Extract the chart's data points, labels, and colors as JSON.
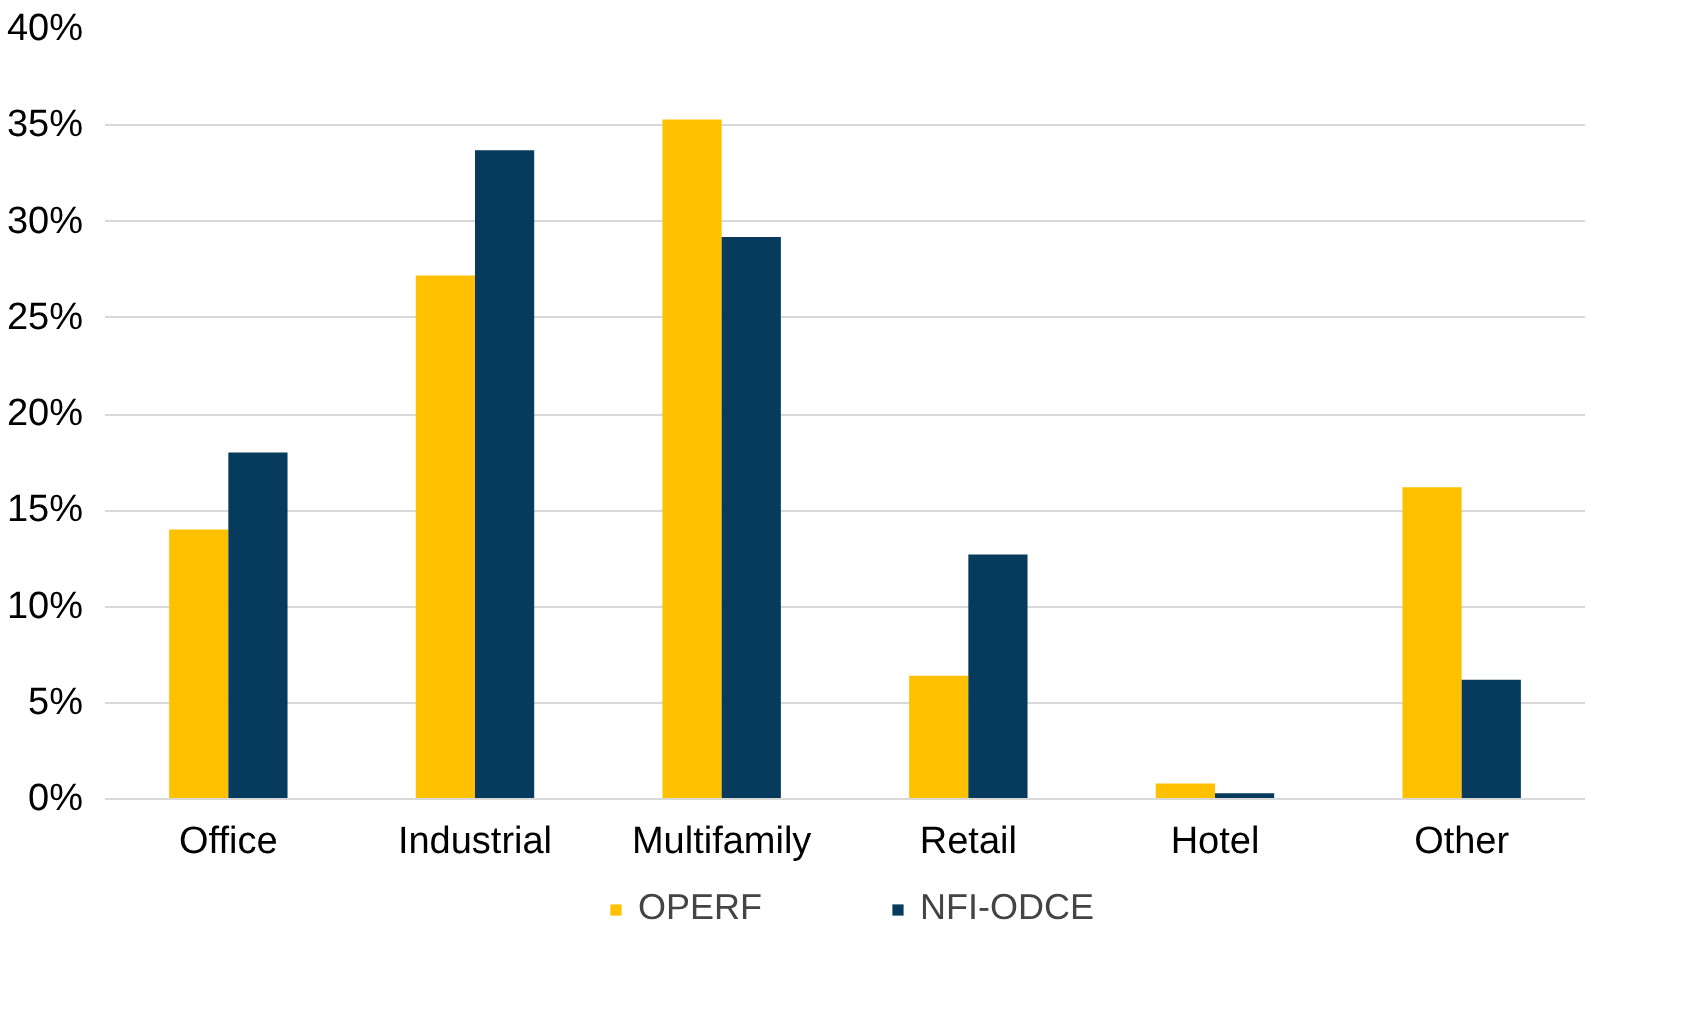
{
  "chart_data": {
    "type": "bar",
    "categories": [
      "Office",
      "Industrial",
      "Multifamily",
      "Retail",
      "Hotel",
      "Other"
    ],
    "series": [
      {
        "name": "OPERF",
        "color": "#ffc000",
        "values": [
          14.0,
          27.2,
          35.3,
          6.4,
          0.8,
          16.2
        ]
      },
      {
        "name": "NFI-ODCE",
        "color": "#073b5e",
        "values": [
          18.0,
          33.7,
          29.2,
          12.7,
          0.3,
          6.2
        ]
      }
    ],
    "ylim": [
      0,
      40
    ],
    "yticks": [
      {
        "value": 0,
        "label": "0%"
      },
      {
        "value": 5,
        "label": "5%"
      },
      {
        "value": 10,
        "label": "10%"
      },
      {
        "value": 15,
        "label": "15%"
      },
      {
        "value": 20,
        "label": "20%"
      },
      {
        "value": 25,
        "label": "25%"
      },
      {
        "value": 30,
        "label": "30%"
      },
      {
        "value": 35,
        "label": "35%"
      },
      {
        "value": 40,
        "label": "40%"
      }
    ],
    "grid": "y",
    "legend": "bottom"
  }
}
